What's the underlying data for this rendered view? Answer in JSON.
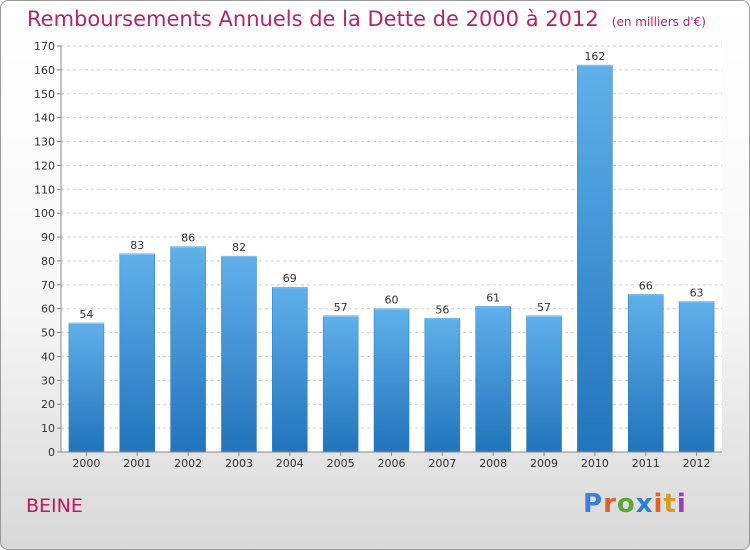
{
  "chart_data": {
    "type": "bar",
    "title": "Remboursements Annuels de la Dette de 2000 à 2012",
    "unit": "(en milliers d'€)",
    "categories": [
      "2000",
      "2001",
      "2002",
      "2003",
      "2004",
      "2005",
      "2006",
      "2007",
      "2008",
      "2009",
      "2010",
      "2011",
      "2012"
    ],
    "values": [
      54,
      83,
      86,
      82,
      69,
      57,
      60,
      56,
      61,
      57,
      162,
      66,
      63
    ],
    "ylim": [
      0,
      170
    ],
    "ytick_step": 10,
    "grid": true,
    "bar_color": "#3a8fd6",
    "xlabel": "",
    "ylabel": ""
  },
  "footer": {
    "commune": "BEINE",
    "logo": [
      "P",
      "r",
      "o",
      "x",
      "i",
      "t",
      "i"
    ],
    "logo_colors": [
      "#3d7ed8",
      "#e0612a",
      "#5aa83a",
      "#2e7fd0",
      "#e0612a",
      "#d99a1e",
      "#9b3fb5"
    ]
  }
}
